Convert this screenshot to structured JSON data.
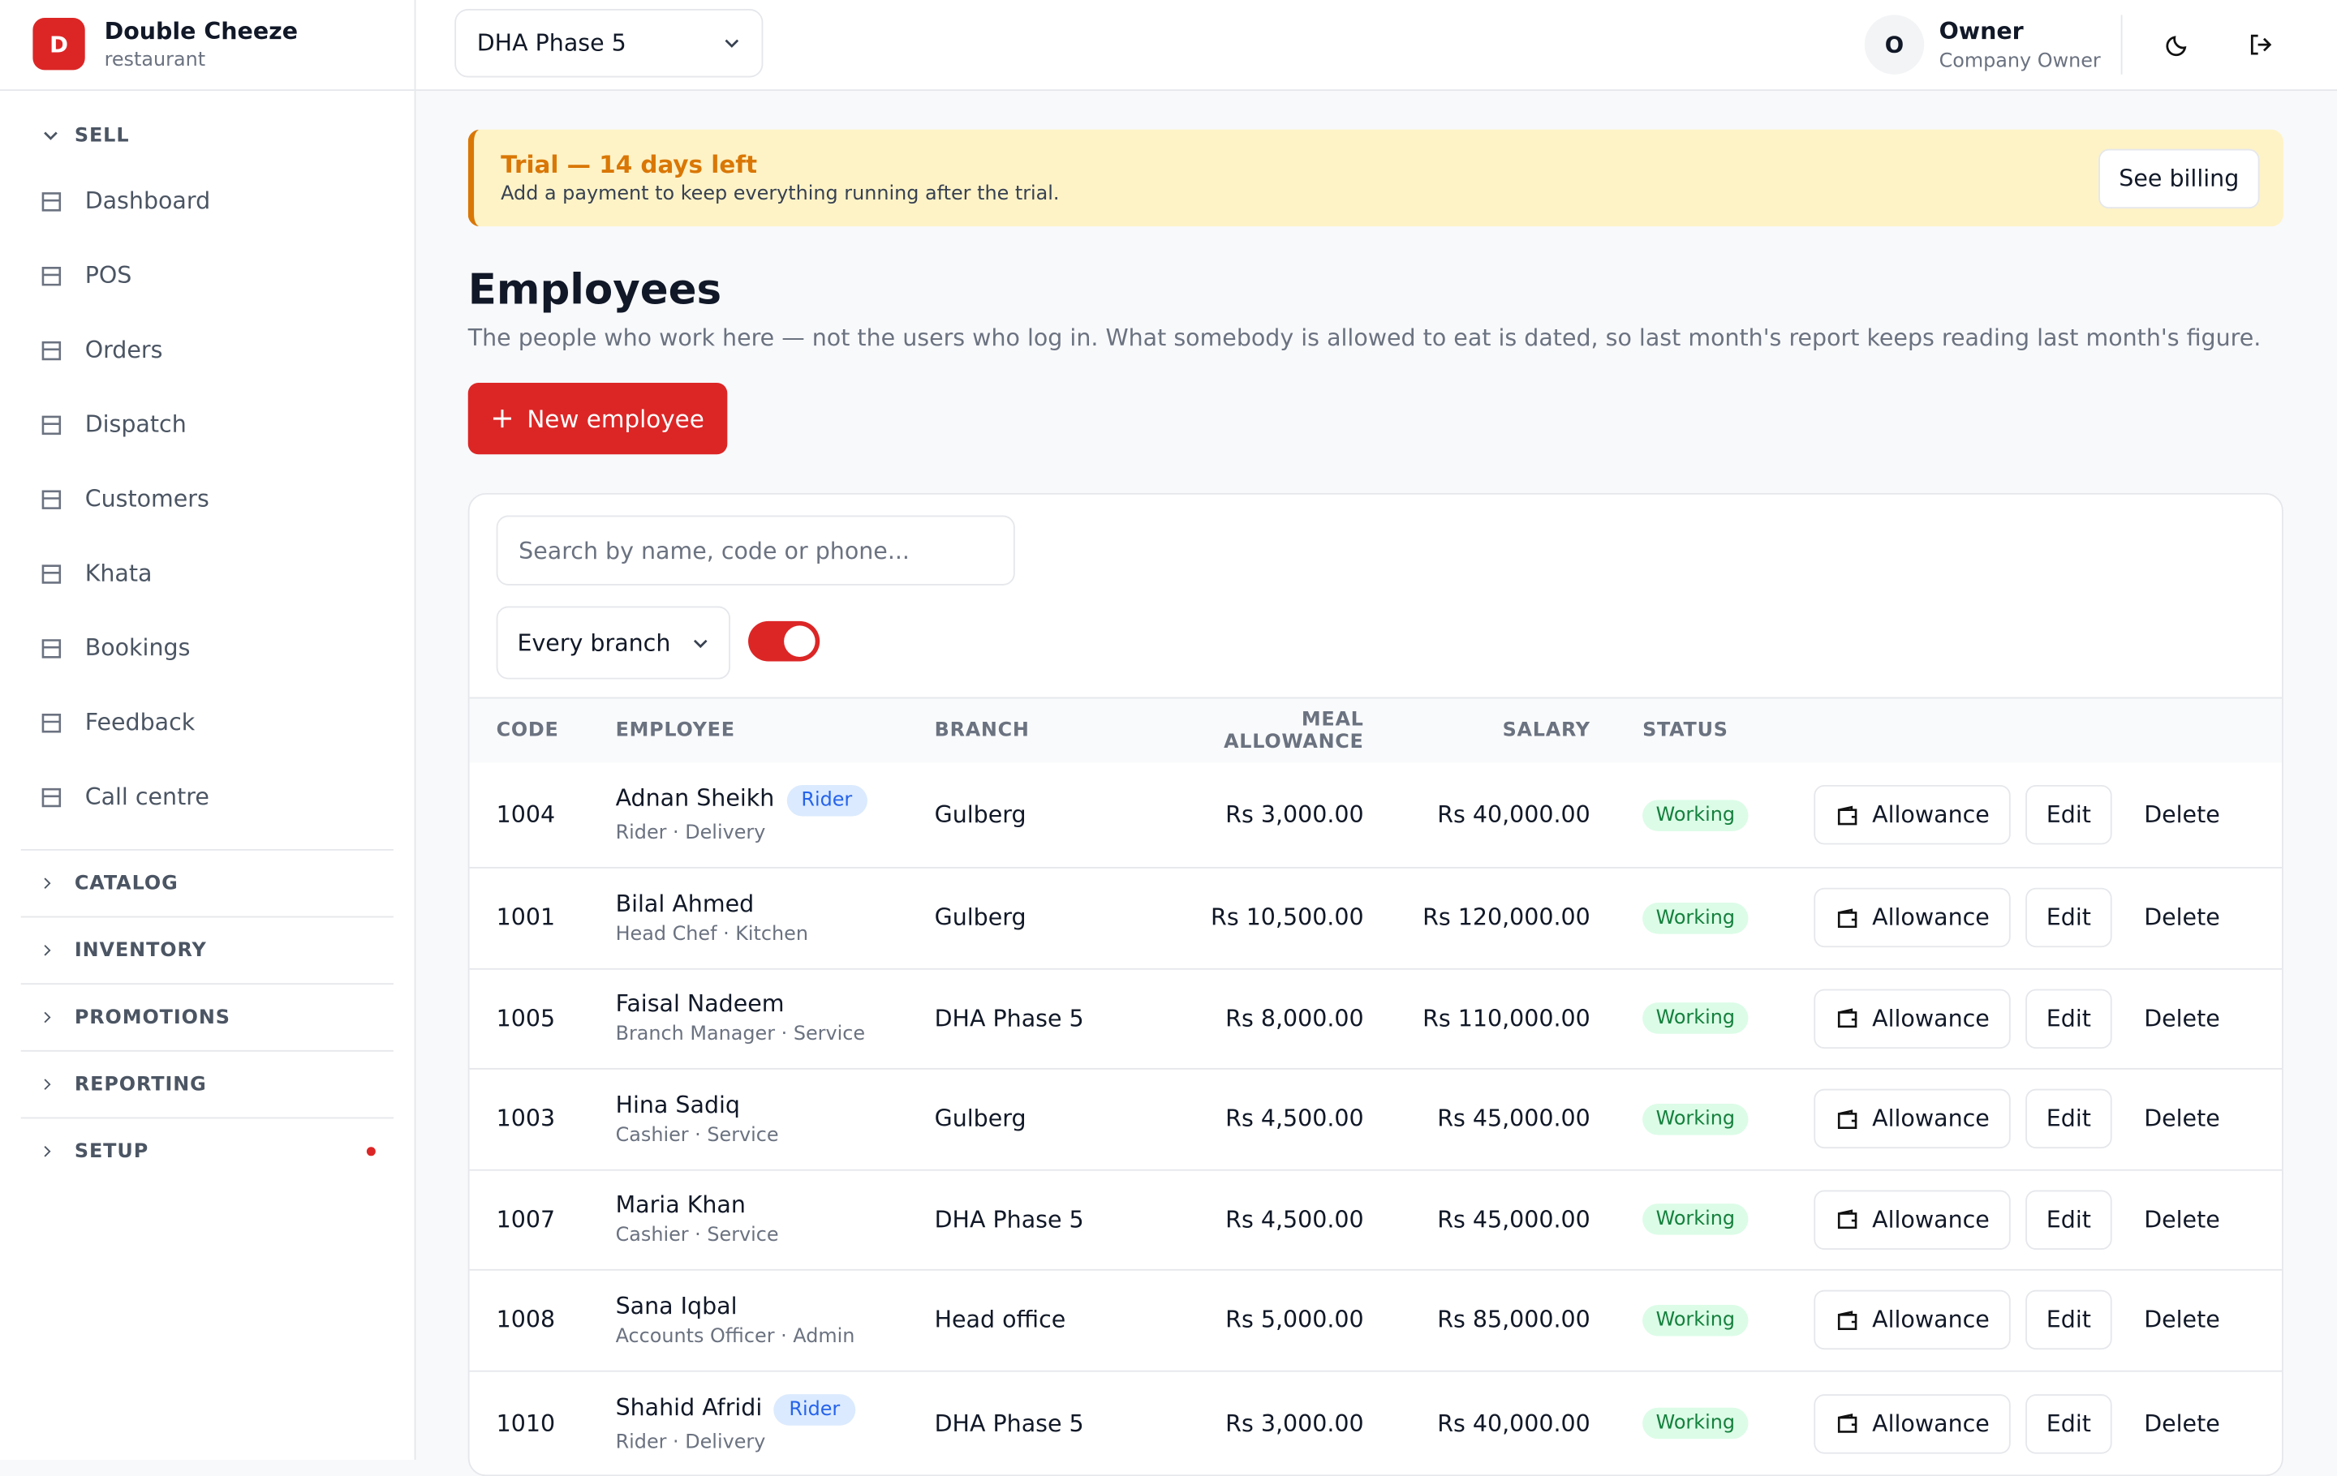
{
  "sidebar": {
    "brand": {
      "initial": "D",
      "name": "Double Cheeze",
      "subtitle": "restaurant"
    },
    "open_section": {
      "title": "SELL",
      "items": [
        "Dashboard",
        "POS",
        "Orders",
        "Dispatch",
        "Customers",
        "Khata",
        "Bookings",
        "Feedback",
        "Call centre"
      ]
    },
    "closed_sections": [
      "CATALOG",
      "INVENTORY",
      "PROMOTIONS",
      "REPORTING",
      "SETUP"
    ]
  },
  "header": {
    "branch": "DHA Phase 5",
    "user": {
      "initial": "O",
      "name": "Owner",
      "role": "Company Owner"
    }
  },
  "banner": {
    "title": "Trial — 14 days left",
    "text": "Add a payment to keep everything running after the trial.",
    "button": "See billing"
  },
  "page": {
    "title": "Employees",
    "description": "The people who work here — not the users who log in. What somebody is allowed to eat is dated, so last month's report keeps reading last month's figure.",
    "new_button": "New employee",
    "search_placeholder": "Search by name, code or phone...",
    "branch_filter": "Every branch",
    "toggle_on": true
  },
  "table": {
    "headers": [
      "CODE",
      "EMPLOYEE",
      "BRANCH",
      "MEAL ALLOWANCE",
      "SALARY",
      "STATUS"
    ],
    "actions": [
      "Allowance",
      "Edit",
      "Delete"
    ],
    "rows": [
      {
        "code": "1004",
        "name": "Adnan Sheikh",
        "badge": "Rider",
        "role": "Rider · Delivery",
        "branch": "Gulberg",
        "meal": "Rs 3,000.00",
        "salary": "Rs 40,000.00",
        "status": "Working"
      },
      {
        "code": "1001",
        "name": "Bilal Ahmed",
        "role": "Head Chef · Kitchen",
        "branch": "Gulberg",
        "meal": "Rs 10,500.00",
        "salary": "Rs 120,000.00",
        "status": "Working"
      },
      {
        "code": "1005",
        "name": "Faisal Nadeem",
        "role": "Branch Manager · Service",
        "branch": "DHA Phase 5",
        "meal": "Rs 8,000.00",
        "salary": "Rs 110,000.00",
        "status": "Working"
      },
      {
        "code": "1003",
        "name": "Hina Sadiq",
        "role": "Cashier · Service",
        "branch": "Gulberg",
        "meal": "Rs 4,500.00",
        "salary": "Rs 45,000.00",
        "status": "Working"
      },
      {
        "code": "1007",
        "name": "Maria Khan",
        "role": "Cashier · Service",
        "branch": "DHA Phase 5",
        "meal": "Rs 4,500.00",
        "salary": "Rs 45,000.00",
        "status": "Working"
      },
      {
        "code": "1008",
        "name": "Sana Iqbal",
        "role": "Accounts Officer · Admin",
        "branch": "Head office",
        "meal": "Rs 5,000.00",
        "salary": "Rs 85,000.00",
        "status": "Working"
      },
      {
        "code": "1010",
        "name": "Shahid Afridi",
        "badge": "Rider",
        "role": "Rider · Delivery",
        "branch": "DHA Phase 5",
        "meal": "Rs 3,000.00",
        "salary": "Rs 40,000.00",
        "status": "Working"
      }
    ]
  }
}
